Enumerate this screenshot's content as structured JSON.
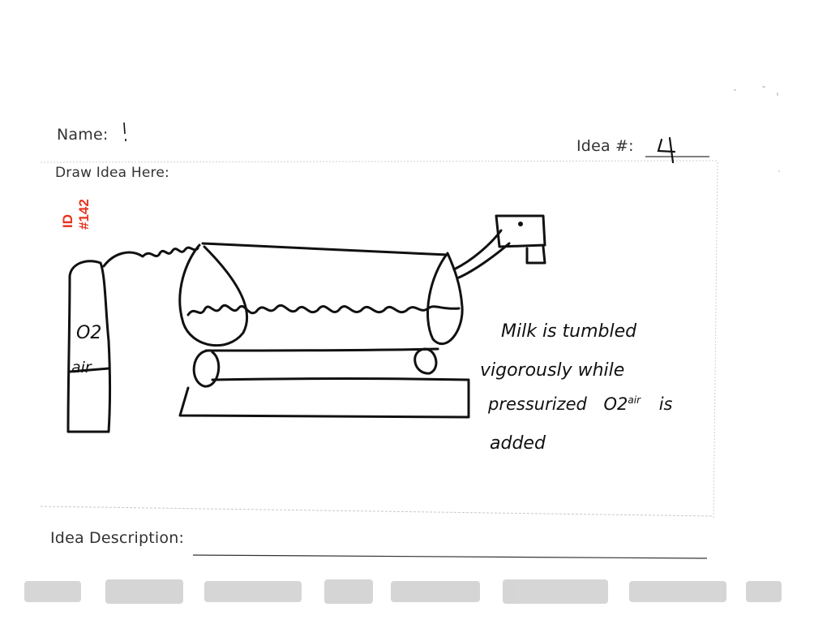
{
  "form": {
    "name_label": "Name:",
    "name_value": "!",
    "idea_number_label": "Idea #:",
    "idea_number_value": "4",
    "draw_label": "Draw Idea Here:",
    "description_label": "Idea Description:"
  },
  "stamp": {
    "id_label": "ID",
    "id_number": "#142",
    "color": "#e8321e"
  },
  "sketch": {
    "tank_label_formula": "O2",
    "tank_label_word": "air",
    "annotation_line1": "Milk is tumbled",
    "annotation_line2": "vigorously while",
    "annotation_line3_a": "pressurized",
    "annotation_line3_formula": "O2",
    "annotation_line3_super": "air",
    "annotation_line3_b": "is",
    "annotation_line4": "added"
  }
}
